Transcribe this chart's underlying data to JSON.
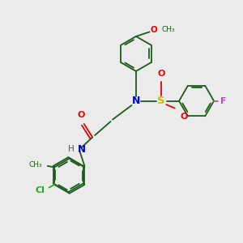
{
  "background_color": "#ebebeb",
  "bond_color": "#1a5c1a",
  "text_colors": {
    "N": "#0000dd",
    "O": "#ee0000",
    "S": "#ccbb00",
    "F": "#cc44cc",
    "Cl": "#22aa22",
    "H": "#555555",
    "C": "#1a5c1a"
  },
  "figsize": [
    3.0,
    3.0
  ],
  "dpi": 100,
  "lw": 1.3
}
